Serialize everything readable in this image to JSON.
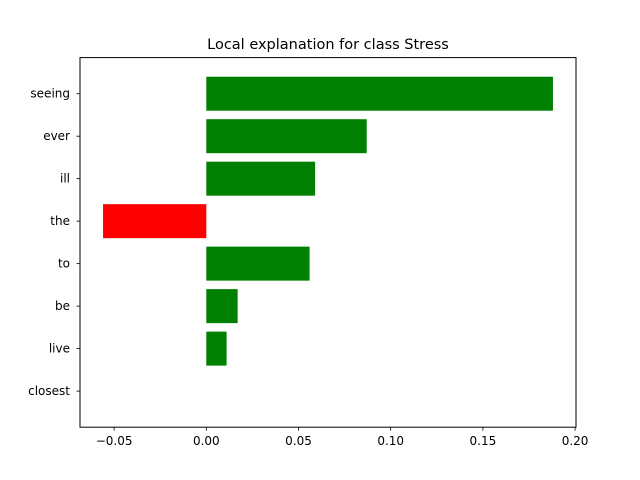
{
  "chart_data": {
    "type": "bar",
    "orientation": "horizontal",
    "title": "Local explanation for class Stress",
    "xlabel": "",
    "ylabel": "",
    "categories": [
      "seeing",
      "ever",
      "ill",
      "the",
      "to",
      "be",
      "live",
      "closest"
    ],
    "values": [
      0.188,
      0.087,
      0.059,
      -0.056,
      0.056,
      0.017,
      0.011,
      0.0
    ],
    "xlim": [
      -0.0685,
      0.2005
    ],
    "xticks": [
      -0.05,
      0.0,
      0.05,
      0.1,
      0.15,
      0.2
    ],
    "xtick_labels": [
      "−0.05",
      "0.00",
      "0.05",
      "0.10",
      "0.15",
      "0.20"
    ],
    "grid": false,
    "legend": "none",
    "colors": {
      "positive": "#008000",
      "negative": "#ff0000"
    }
  }
}
